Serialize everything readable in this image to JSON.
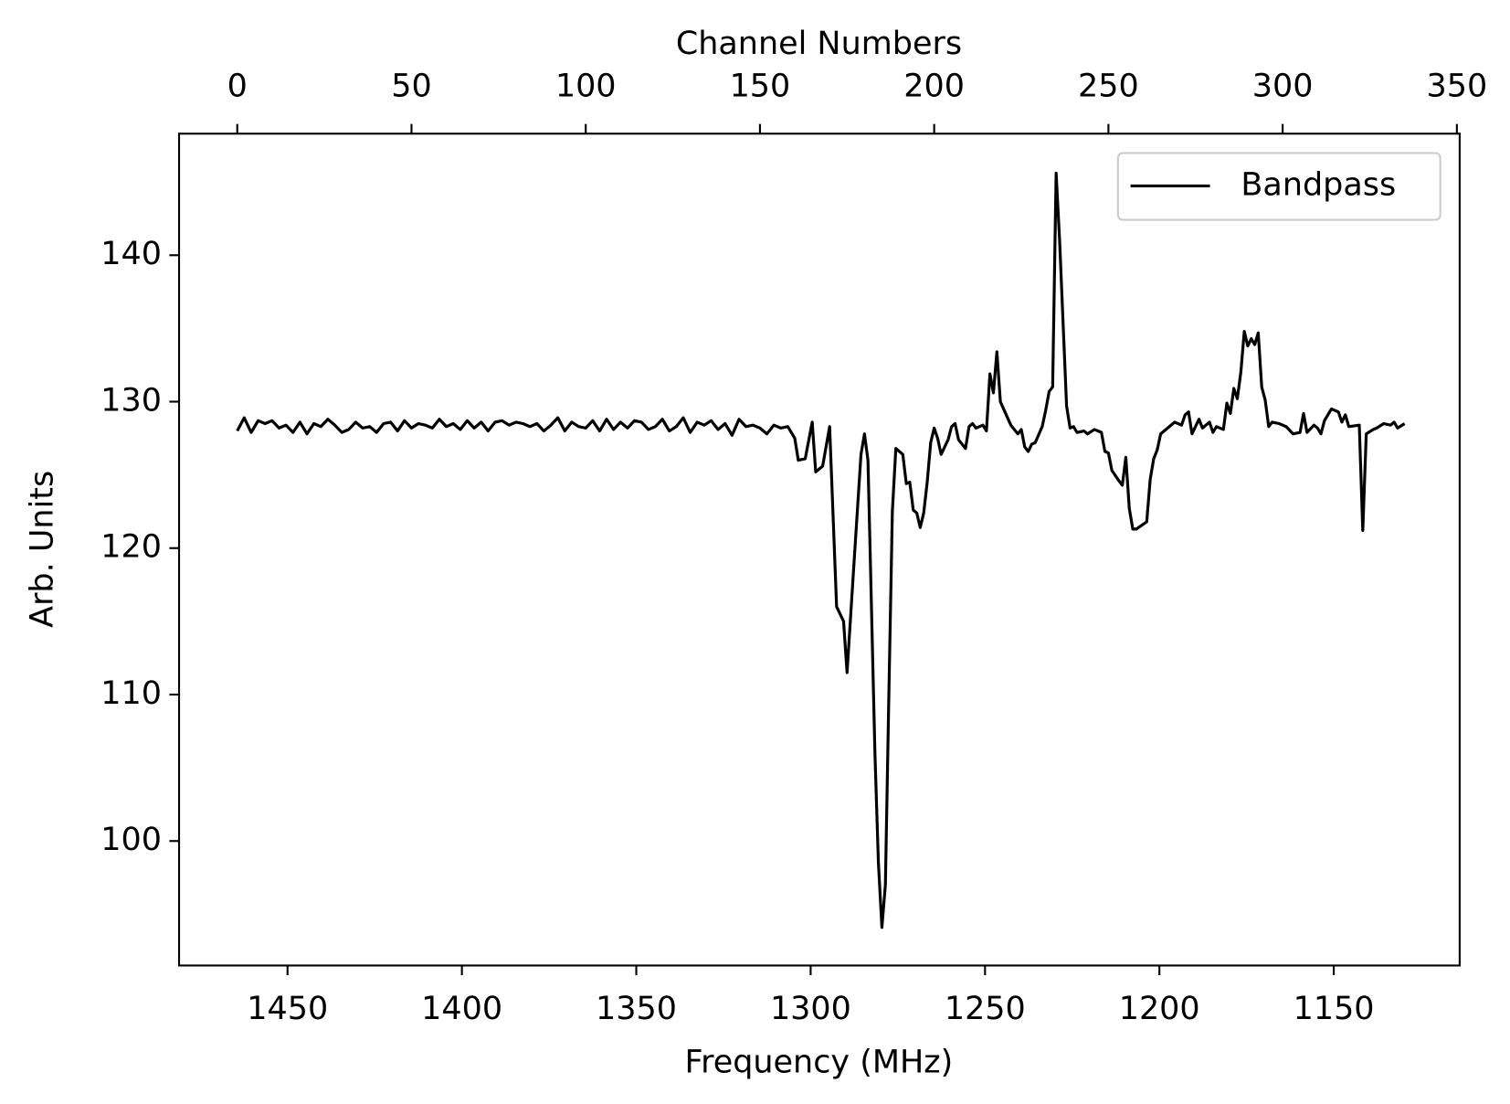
{
  "chart_data": {
    "type": "line",
    "xlabel": "Frequency (MHz)",
    "ylabel": "Arb. Units",
    "top_xlabel": "Channel Numbers",
    "xlim": [
      1481.1,
      1113.9
    ],
    "xticks": [
      1450,
      1400,
      1350,
      1300,
      1250,
      1200,
      1150
    ],
    "top_xlim": [
      -16.7,
      350.8
    ],
    "top_xticks": [
      0,
      50,
      100,
      150,
      200,
      250,
      300,
      350
    ],
    "ylim": [
      91.5,
      148.3
    ],
    "yticks": [
      100,
      110,
      120,
      130,
      140
    ],
    "legend": "upper right",
    "series": [
      {
        "name": "Bandpass",
        "color": "#000000",
        "x": [
          0,
          2,
          4,
          6,
          8,
          10,
          12,
          14,
          16,
          18,
          20,
          22,
          24,
          26,
          28,
          30,
          32,
          34,
          36,
          38,
          40,
          42,
          44,
          46,
          48,
          50,
          52,
          54,
          56,
          58,
          60,
          62,
          64,
          66,
          68,
          70,
          72,
          74,
          76,
          78,
          80,
          82,
          84,
          86,
          88,
          90,
          92,
          94,
          96,
          98,
          100,
          102,
          104,
          106,
          108,
          110,
          112,
          114,
          116,
          118,
          120,
          122,
          124,
          126,
          128,
          130,
          132,
          134,
          136,
          138,
          140,
          142,
          144,
          146,
          148,
          150,
          152,
          154,
          156,
          158,
          160,
          161,
          163,
          165,
          166,
          168,
          170,
          172,
          174,
          175,
          177,
          179,
          180,
          181,
          182,
          183,
          184,
          185,
          186,
          187,
          188,
          189,
          191,
          192,
          193,
          194,
          195,
          196,
          197,
          198,
          199,
          200,
          201,
          202,
          204,
          205,
          206,
          207,
          209,
          210,
          211,
          212,
          214,
          215,
          216,
          217,
          218,
          219,
          222,
          224,
          225,
          226,
          227,
          228,
          229,
          231,
          232,
          233,
          234,
          235,
          236,
          238,
          239,
          240,
          241,
          243,
          244,
          246,
          248,
          249,
          250,
          251,
          253,
          254,
          255,
          256,
          257,
          258,
          261,
          262,
          263,
          264,
          265,
          267,
          269,
          271,
          272,
          273,
          274,
          276,
          277,
          279,
          280,
          281,
          283,
          284,
          285,
          286,
          287,
          288,
          289,
          290,
          291,
          292,
          293,
          294,
          295,
          296,
          297,
          299,
          301,
          303,
          305,
          306,
          307,
          309,
          310,
          311,
          312,
          314,
          316,
          317,
          318,
          319,
          322,
          323,
          324,
          326,
          327,
          329,
          331,
          332,
          333,
          335
        ],
        "values": [
          128.0,
          128.9,
          127.9,
          128.7,
          128.5,
          128.7,
          128.2,
          128.4,
          127.9,
          128.6,
          127.8,
          128.5,
          128.3,
          128.8,
          128.4,
          127.9,
          128.1,
          128.6,
          128.2,
          128.3,
          127.9,
          128.5,
          128.6,
          128.0,
          128.7,
          128.2,
          128.5,
          128.4,
          128.2,
          128.8,
          128.3,
          128.5,
          128.1,
          128.7,
          128.2,
          128.6,
          128.0,
          128.6,
          128.7,
          128.4,
          128.6,
          128.5,
          128.3,
          128.5,
          128.0,
          128.4,
          128.9,
          128.0,
          128.6,
          128.3,
          128.2,
          128.7,
          128.0,
          128.8,
          128.1,
          128.6,
          128.2,
          128.7,
          128.6,
          128.1,
          128.3,
          128.8,
          128.0,
          128.3,
          128.9,
          127.9,
          128.6,
          128.4,
          128.7,
          128.1,
          128.5,
          127.7,
          128.8,
          128.3,
          128.4,
          128.2,
          127.8,
          128.4,
          128.2,
          128.3,
          127.5,
          126.0,
          126.1,
          128.6,
          125.2,
          125.6,
          128.3,
          116.0,
          115.0,
          111.5,
          119.0,
          126.4,
          127.8,
          126.0,
          116.0,
          106.0,
          98.5,
          94.1,
          97.0,
          110.0,
          122.5,
          126.8,
          126.4,
          124.4,
          124.5,
          122.6,
          122.4,
          121.4,
          122.4,
          124.5,
          127.2,
          128.2,
          127.5,
          126.4,
          127.4,
          128.3,
          128.5,
          127.4,
          126.8,
          128.3,
          128.5,
          128.2,
          128.4,
          128.0,
          131.9,
          130.6,
          133.4,
          130.0,
          128.4,
          127.8,
          128.1,
          126.9,
          126.6,
          127.1,
          127.2,
          128.3,
          129.4,
          130.7,
          131.0,
          145.6,
          141.0,
          129.7,
          128.2,
          128.3,
          127.9,
          128.0,
          127.8,
          128.1,
          127.9,
          126.6,
          126.5,
          125.3,
          124.6,
          124.3,
          126.2,
          122.7,
          121.3,
          121.3,
          121.8,
          124.7,
          126.1,
          126.7,
          127.8,
          128.2,
          128.6,
          128.4,
          129.1,
          129.3,
          127.8,
          128.8,
          128.2,
          128.6,
          127.9,
          128.3,
          128.1,
          129.9,
          129.2,
          130.9,
          130.2,
          132.0,
          134.8,
          133.8,
          134.3,
          133.9,
          134.7,
          131.0,
          130.1,
          128.3,
          128.6,
          128.5,
          128.3,
          127.8,
          127.9,
          129.2,
          127.9,
          128.4,
          128.2,
          127.8,
          128.7,
          129.5,
          129.3,
          128.6,
          129.1,
          128.3,
          128.4,
          121.2,
          127.8,
          128.1,
          128.2,
          128.5,
          128.4,
          128.6,
          128.2,
          128.5
        ]
      }
    ]
  }
}
